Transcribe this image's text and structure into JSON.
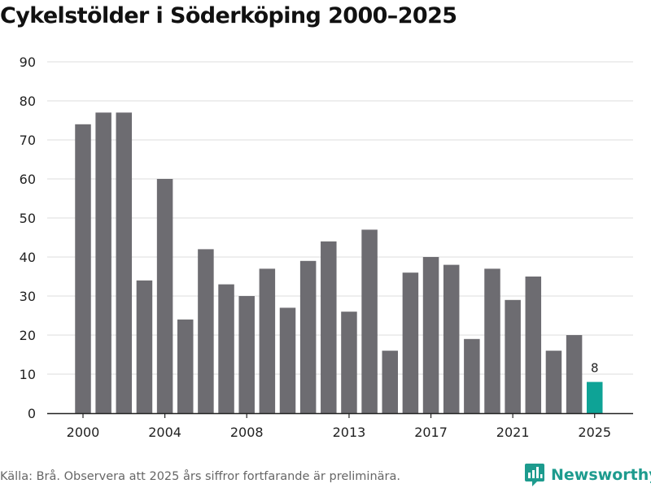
{
  "chart_data": {
    "type": "bar",
    "title": "Cykelstölder i Söderköping 2000–2025",
    "xlabel": "",
    "ylabel": "",
    "ylim": [
      0,
      90
    ],
    "yticks": [
      0,
      10,
      20,
      30,
      40,
      50,
      60,
      70,
      80,
      90
    ],
    "categories": [
      2000,
      2001,
      2002,
      2003,
      2004,
      2005,
      2006,
      2007,
      2008,
      2009,
      2010,
      2011,
      2012,
      2013,
      2014,
      2015,
      2016,
      2017,
      2018,
      2019,
      2020,
      2021,
      2022,
      2023,
      2024,
      2025
    ],
    "values": [
      74,
      77,
      77,
      34,
      60,
      24,
      42,
      33,
      30,
      37,
      27,
      39,
      44,
      26,
      47,
      16,
      36,
      40,
      38,
      19,
      37,
      29,
      35,
      16,
      20,
      8
    ],
    "xticks": [
      2000,
      2004,
      2008,
      2013,
      2017,
      2021,
      2025
    ],
    "highlight": {
      "category": 2025,
      "label": "8"
    },
    "colors": {
      "bar": "#6d6c71",
      "highlight": "#0ea396",
      "grid": "#dddddd",
      "axis": "#222222"
    }
  },
  "footer": {
    "source": "Källa: Brå. Observera att 2025 års siffror fortfarande är preliminära.",
    "brand": "Newsworthy",
    "brand_icon": "newsworthy-logo-icon",
    "brand_color": "#1d9b8e"
  }
}
